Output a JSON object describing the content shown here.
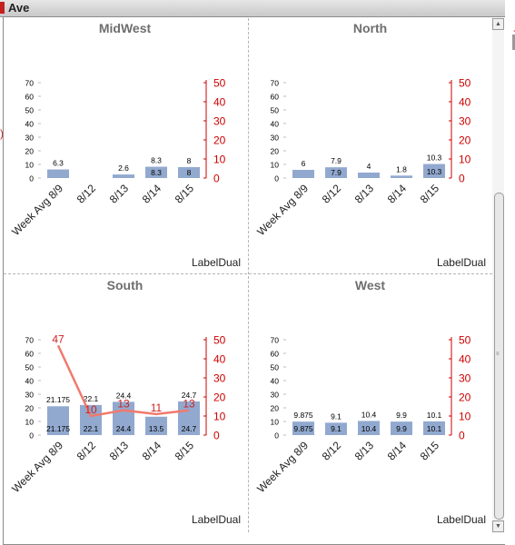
{
  "window": {
    "title": "Ave"
  },
  "left_axis": {
    "ticks": [
      0,
      10,
      20,
      30,
      40,
      50,
      60,
      70
    ]
  },
  "right_axis": {
    "ticks": [
      0,
      10,
      20,
      30,
      40,
      50
    ]
  },
  "categories": [
    "Week Avg 8/9",
    "8/12",
    "8/13",
    "8/14",
    "8/15"
  ],
  "colors": {
    "bar": "#92a9cf",
    "line": "#f07a6e",
    "axis_right": "#cc0000",
    "axis_left": "#000000"
  },
  "icons": {
    "scroll_up": "chevron-up-icon",
    "scroll_down": "chevron-down-icon"
  },
  "chart_data": [
    {
      "type": "bar",
      "title": "MidWest",
      "xlabel": "LabelDual",
      "categories": [
        "Week Avg 8/9",
        "8/12",
        "8/13",
        "8/14",
        "8/15"
      ],
      "values": [
        6.3,
        null,
        2.6,
        8.3,
        8
      ],
      "top_labels": [
        "6.3",
        "",
        "2.6",
        "8.3",
        "8"
      ],
      "inner_labels": [
        "",
        "",
        "",
        "8.3",
        "8"
      ],
      "line_values": [],
      "ylim": [
        0,
        70
      ],
      "y2lim": [
        0,
        50
      ]
    },
    {
      "type": "bar",
      "title": "North",
      "xlabel": "LabelDual",
      "categories": [
        "Week Avg 8/9",
        "8/12",
        "8/13",
        "8/14",
        "8/15"
      ],
      "values": [
        6,
        7.9,
        4,
        1.8,
        10.3
      ],
      "top_labels": [
        "6",
        "7.9",
        "4",
        "1.8",
        "10.3"
      ],
      "inner_labels": [
        "",
        "7.9",
        "",
        "",
        "10.3"
      ],
      "line_values": [],
      "ylim": [
        0,
        70
      ],
      "y2lim": [
        0,
        50
      ]
    },
    {
      "type": "bar",
      "title": "South",
      "xlabel": "LabelDual",
      "categories": [
        "Week Avg 8/9",
        "8/12",
        "8/13",
        "8/14",
        "8/15"
      ],
      "values": [
        21.175,
        22.1,
        24.4,
        13.5,
        24.7
      ],
      "top_labels": [
        "21.175",
        "22.1",
        "24.4",
        "",
        "24.7"
      ],
      "inner_labels": [
        "21.175",
        "22.1",
        "24.4",
        "13.5",
        "24.7"
      ],
      "line_values": [
        47,
        10,
        13,
        11,
        13
      ],
      "line_labels": [
        "47",
        "10",
        "13",
        "11",
        "13"
      ],
      "ylim": [
        0,
        70
      ],
      "y2lim": [
        0,
        50
      ]
    },
    {
      "type": "bar",
      "title": "West",
      "xlabel": "LabelDual",
      "categories": [
        "Week Avg 8/9",
        "8/12",
        "8/13",
        "8/14",
        "8/15"
      ],
      "values": [
        9.875,
        9.1,
        10.4,
        9.9,
        10.1
      ],
      "top_labels": [
        "9.875",
        "9.1",
        "10.4",
        "9.9",
        "10.1"
      ],
      "inner_labels": [
        "9.875",
        "9.1",
        "10.4",
        "9.9",
        "10.1"
      ],
      "line_values": [],
      "ylim": [
        0,
        70
      ],
      "y2lim": [
        0,
        50
      ]
    }
  ]
}
